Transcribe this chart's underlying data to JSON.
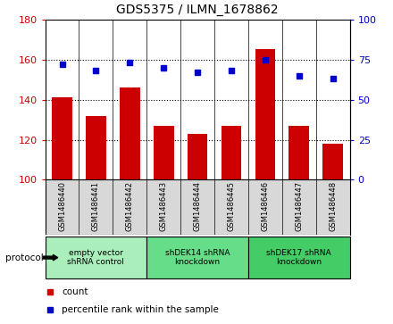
{
  "title": "GDS5375 / ILMN_1678862",
  "categories": [
    "GSM1486440",
    "GSM1486441",
    "GSM1486442",
    "GSM1486443",
    "GSM1486444",
    "GSM1486445",
    "GSM1486446",
    "GSM1486447",
    "GSM1486448"
  ],
  "counts": [
    141,
    132,
    146,
    127,
    123,
    127,
    165,
    127,
    118
  ],
  "percentiles": [
    72,
    68,
    73,
    70,
    67,
    68,
    75,
    65,
    63
  ],
  "ylim_left": [
    100,
    180
  ],
  "ylim_right": [
    0,
    100
  ],
  "yticks_left": [
    100,
    120,
    140,
    160,
    180
  ],
  "yticks_right": [
    0,
    25,
    50,
    75,
    100
  ],
  "bar_color": "#cc0000",
  "dot_color": "#0000cc",
  "groups": [
    {
      "label": "empty vector\nshRNA control",
      "start": 0,
      "end": 3,
      "color": "#aaeebb"
    },
    {
      "label": "shDEK14 shRNA\nknockdown",
      "start": 3,
      "end": 6,
      "color": "#66dd88"
    },
    {
      "label": "shDEK17 shRNA\nknockdown",
      "start": 6,
      "end": 9,
      "color": "#44cc66"
    }
  ],
  "protocol_label": "protocol",
  "legend_count_label": "count",
  "legend_pct_label": "percentile rank within the sample",
  "plot_bg_color": "#ffffff",
  "tick_label_color_left": "#cc0000",
  "tick_label_color_right": "#0000cc",
  "xlbl_bg_color": "#d8d8d8",
  "fig_bg": "#ffffff"
}
